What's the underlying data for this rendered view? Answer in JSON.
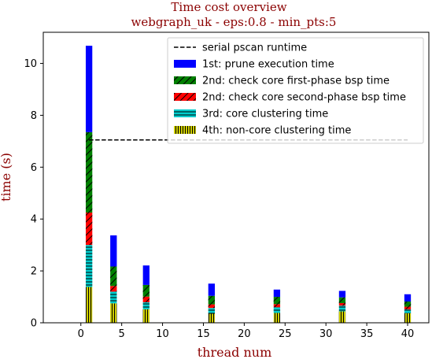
{
  "chart_data": {
    "type": "bar",
    "stacked": true,
    "title": "Time cost overview",
    "subtitle": "webgraph_uk - eps:0.8 - min_pts:5",
    "xlabel": "thread num",
    "ylabel": "time (s)",
    "xlim": [
      -4.6,
      42.6
    ],
    "ylim": [
      0,
      11.2
    ],
    "xticks": [
      0,
      5,
      10,
      15,
      20,
      25,
      30,
      35,
      40
    ],
    "yticks": [
      0,
      2,
      4,
      6,
      8,
      10
    ],
    "legend_position": "top-right",
    "categories": [
      1,
      4,
      8,
      16,
      24,
      32,
      40
    ],
    "reference_line": {
      "name": "serial pscan runtime",
      "value": 7.05,
      "x_range": [
        1,
        40
      ],
      "style": "dashed",
      "color": "#000000"
    },
    "series": [
      {
        "name": "4th: non-core clustering time",
        "color": "#cccc00",
        "hatch": "vertical",
        "values": [
          1.38,
          0.75,
          0.52,
          0.35,
          0.38,
          0.44,
          0.37
        ]
      },
      {
        "name": "3rd: core clustering time",
        "color": "#00cccc",
        "hatch": "horizontal",
        "values": [
          1.62,
          0.45,
          0.27,
          0.22,
          0.22,
          0.22,
          0.15
        ]
      },
      {
        "name": "2nd: check core second-phase bsp time",
        "color": "#ff0000",
        "hatch": "backslash",
        "values": [
          1.25,
          0.22,
          0.22,
          0.14,
          0.12,
          0.1,
          0.1
        ]
      },
      {
        "name": "2nd: check core first-phase bsp time",
        "color": "#008000",
        "hatch": "backslash",
        "values": [
          3.1,
          0.75,
          0.45,
          0.33,
          0.28,
          0.22,
          0.2
        ]
      },
      {
        "name": "1st: prune execution time",
        "color": "#0000ff",
        "hatch": "none",
        "values": [
          3.33,
          1.2,
          0.75,
          0.47,
          0.28,
          0.25,
          0.28
        ]
      }
    ]
  }
}
